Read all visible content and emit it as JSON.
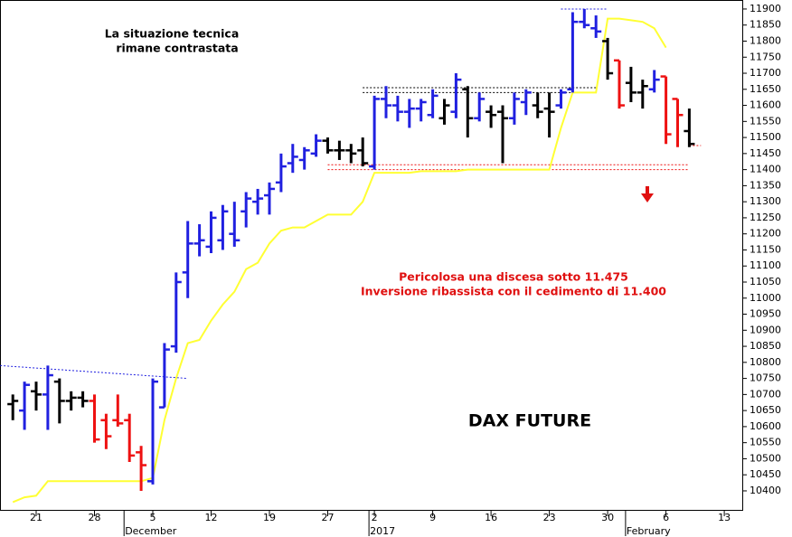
{
  "chart_data": {
    "type": "ohlc",
    "title": "DAX FUTURE",
    "annotations": [
      "La situazione tecnica",
      "rimane contrastata",
      "Pericolosa una discesa sotto 11.475",
      "Inversione ribassista con il cedimento di 11.400"
    ],
    "categories": [
      null,
      null,
      "21",
      null,
      null,
      null,
      null,
      "28",
      null,
      null,
      null,
      null,
      "5",
      null,
      null,
      null,
      null,
      "12",
      null,
      null,
      null,
      null,
      "19",
      null,
      null,
      null,
      null,
      "27",
      null,
      null,
      null,
      "2",
      null,
      null,
      null,
      null,
      "9",
      null,
      null,
      null,
      null,
      "16",
      null,
      null,
      null,
      null,
      "23",
      null,
      null,
      null,
      null,
      "30",
      null,
      null,
      null,
      null,
      "6",
      null,
      null,
      null,
      null,
      "13",
      null
    ],
    "period_labels": [
      null,
      null,
      null,
      null,
      null,
      null,
      null,
      null,
      null,
      null,
      "December",
      null,
      null,
      null,
      null,
      null,
      null,
      null,
      null,
      null,
      null,
      null,
      null,
      null,
      null,
      null,
      null,
      null,
      null,
      null,
      null,
      "2017",
      null,
      null,
      null,
      null,
      null,
      null,
      null,
      null,
      null,
      null,
      null,
      null,
      null,
      null,
      null,
      null,
      null,
      null,
      null,
      null,
      null,
      "February",
      null,
      null,
      null,
      null,
      null,
      null,
      null,
      null,
      null
    ],
    "open": [
      10670,
      10650,
      10710,
      10700,
      10740,
      10680,
      10690,
      10680,
      10620,
      10620,
      10620,
      10520,
      10430,
      10660,
      10850,
      11080,
      11170,
      11160,
      11180,
      11200,
      11270,
      11300,
      11320,
      11360,
      11420,
      11430,
      11450,
      11490,
      11460,
      11460,
      11460,
      11410,
      11620,
      11600,
      11580,
      11590,
      11570,
      11560,
      11580,
      11650,
      11560,
      11580,
      11580,
      11560,
      11610,
      11600,
      11590,
      11600,
      11650,
      11860,
      11840,
      11800,
      11740,
      11670,
      11640,
      11650,
      11690,
      11620,
      11520,
      null,
      null,
      null,
      null
    ],
    "high": [
      10700,
      10740,
      10740,
      10790,
      10750,
      10710,
      10710,
      10700,
      10640,
      10700,
      10640,
      10540,
      10750,
      10860,
      11080,
      11240,
      11230,
      11270,
      11290,
      11300,
      11330,
      11340,
      11360,
      11450,
      11480,
      11470,
      11510,
      11500,
      11490,
      11480,
      11500,
      11630,
      11660,
      11630,
      11620,
      11620,
      11650,
      11620,
      11700,
      11660,
      11640,
      11600,
      11600,
      11640,
      11650,
      11640,
      11640,
      11650,
      11890,
      11900,
      11880,
      11810,
      11740,
      11720,
      11680,
      11710,
      11690,
      11620,
      11590,
      null,
      null,
      null,
      null
    ],
    "low": [
      10620,
      10590,
      10650,
      10590,
      10610,
      10650,
      10660,
      10550,
      10530,
      10600,
      10490,
      10400,
      10420,
      10660,
      10830,
      11000,
      11130,
      11140,
      11150,
      11160,
      11220,
      11260,
      11260,
      11330,
      11390,
      11400,
      11440,
      11450,
      11430,
      11420,
      11410,
      11400,
      11560,
      11550,
      11530,
      11550,
      11560,
      11540,
      11560,
      11500,
      11550,
      11530,
      11420,
      11540,
      11570,
      11560,
      11500,
      11590,
      11640,
      11840,
      11810,
      11680,
      11590,
      11610,
      11590,
      11640,
      11480,
      11470,
      11470,
      null,
      null,
      null,
      null
    ],
    "close": [
      10680,
      10730,
      10700,
      10760,
      10680,
      10690,
      10680,
      10560,
      10570,
      10610,
      10510,
      10480,
      10740,
      10840,
      11050,
      11170,
      11180,
      11250,
      11270,
      11180,
      11310,
      11310,
      11340,
      11410,
      11440,
      11460,
      11490,
      11460,
      11460,
      11450,
      11420,
      11620,
      11600,
      11580,
      11590,
      11610,
      11630,
      11600,
      11680,
      11560,
      11620,
      11570,
      11560,
      11620,
      11640,
      11580,
      11580,
      11640,
      11860,
      11850,
      11830,
      11700,
      11600,
      11640,
      11660,
      11680,
      11510,
      11570,
      11480,
      null,
      null,
      null,
      null
    ],
    "colors": [
      "#000000",
      "#2020e0",
      "#000000",
      "#2020e0",
      "#000000",
      "#000000",
      "#000000",
      "#ee1111",
      "#ee1111",
      "#ee1111",
      "#ee1111",
      "#ee1111",
      "#2020e0",
      "#2020e0",
      "#2020e0",
      "#2020e0",
      "#2020e0",
      "#2020e0",
      "#2020e0",
      "#2020e0",
      "#2020e0",
      "#2020e0",
      "#2020e0",
      "#2020e0",
      "#2020e0",
      "#2020e0",
      "#2020e0",
      "#000000",
      "#000000",
      "#000000",
      "#000000",
      "#2020e0",
      "#2020e0",
      "#2020e0",
      "#2020e0",
      "#2020e0",
      "#2020e0",
      "#000000",
      "#2020e0",
      "#000000",
      "#2020e0",
      "#000000",
      "#000000",
      "#2020e0",
      "#2020e0",
      "#000000",
      "#000000",
      "#2020e0",
      "#2020e0",
      "#2020e0",
      "#2020e0",
      "#000000",
      "#ee1111",
      "#000000",
      "#000000",
      "#2020e0",
      "#ee1111",
      "#ee1111",
      "#000000",
      null,
      null,
      null,
      null
    ],
    "line": {
      "color": "#ffff33",
      "values": [
        10365,
        10380,
        10385,
        10430,
        10430,
        10430,
        10430,
        10430,
        10430,
        10430,
        10430,
        10430,
        10440,
        10620,
        10750,
        10860,
        10870,
        10930,
        10980,
        11020,
        11090,
        11110,
        11170,
        11210,
        11220,
        11220,
        11240,
        11260,
        11260,
        11260,
        11300,
        11390,
        11390,
        11390,
        11390,
        11395,
        11395,
        11395,
        11395,
        11400,
        11400,
        11400,
        11400,
        11400,
        11400,
        11400,
        11400,
        11530,
        11640,
        11640,
        11640,
        11870,
        11870,
        11865,
        11860,
        11840,
        11780,
        null,
        null,
        null,
        null,
        null,
        null
      ]
    },
    "reference_lines": [
      {
        "color": "#2020e0",
        "x": [
          0,
          15
        ],
        "y": [
          10790,
          10750
        ]
      },
      {
        "color": "#000000",
        "x": [
          30,
          50
        ],
        "y": [
          11655,
          11655
        ]
      },
      {
        "color": "#000000",
        "x": [
          30,
          50
        ],
        "y": [
          11640,
          11640
        ]
      },
      {
        "color": "#ee1111",
        "x": [
          27,
          58
        ],
        "y": [
          11415,
          11415
        ]
      },
      {
        "color": "#ee1111",
        "x": [
          27,
          58
        ],
        "y": [
          11400,
          11400
        ]
      },
      {
        "color": "#ee1111",
        "x": [
          58,
          59
        ],
        "y": [
          11475,
          11475
        ]
      },
      {
        "color": "#2020e0",
        "x": [
          47,
          51
        ],
        "y": [
          11900,
          11900
        ]
      }
    ],
    "ylim": [
      10338,
      11928
    ],
    "yticks": [
      10400,
      10450,
      10500,
      10550,
      10600,
      10650,
      10700,
      10750,
      10800,
      10850,
      10900,
      10950,
      11000,
      11050,
      11100,
      11150,
      11200,
      11250,
      11300,
      11350,
      11400,
      11450,
      11500,
      11550,
      11600,
      11650,
      11700,
      11750,
      11800,
      11850,
      11900
    ],
    "grid": false
  }
}
